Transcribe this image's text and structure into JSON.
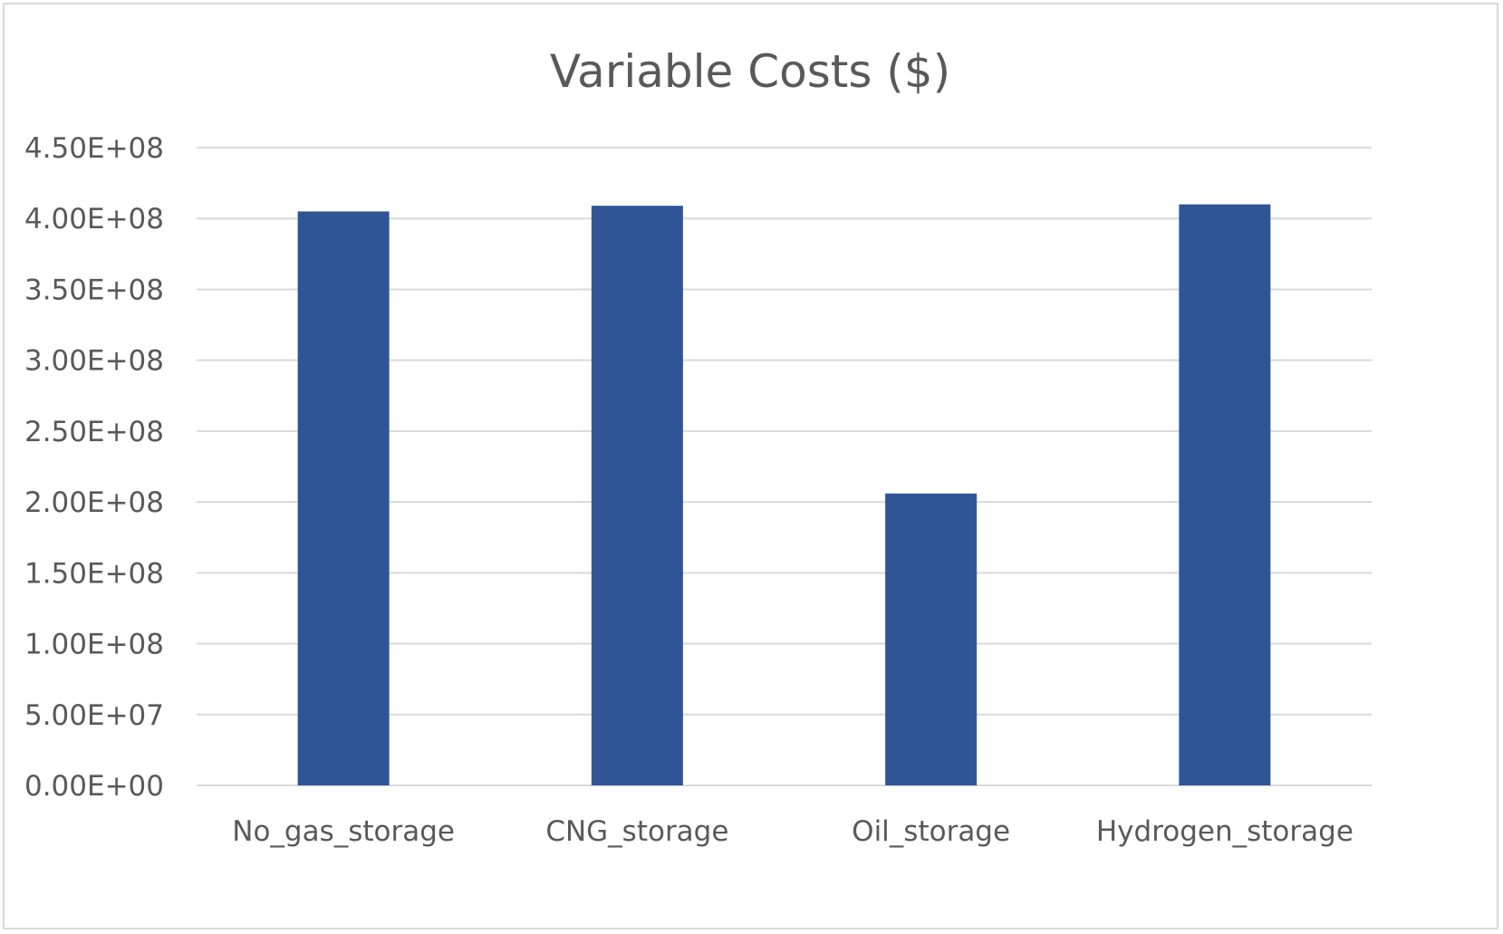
{
  "chart_data": {
    "type": "bar",
    "title": "Variable Costs ($)",
    "xlabel": "",
    "ylabel": "",
    "categories": [
      "No_gas_storage",
      "CNG_storage",
      "Oil_storage",
      "Hydrogen_storage"
    ],
    "values": [
      405000000,
      409000000,
      206000000,
      410000000
    ],
    "ylim": [
      0,
      450000000
    ],
    "yticks": [
      0,
      50000000,
      100000000,
      150000000,
      200000000,
      250000000,
      300000000,
      350000000,
      400000000,
      450000000
    ],
    "ytick_labels": [
      "0.00E+00",
      "5.00E+07",
      "1.00E+08",
      "1.50E+08",
      "2.00E+08",
      "2.50E+08",
      "3.00E+08",
      "3.50E+08",
      "4.00E+08",
      "4.50E+08"
    ],
    "grid": true,
    "legend": "none",
    "colors": {
      "bar": "#2f5597",
      "grid": "#d9d9d9",
      "text": "#595959"
    }
  }
}
